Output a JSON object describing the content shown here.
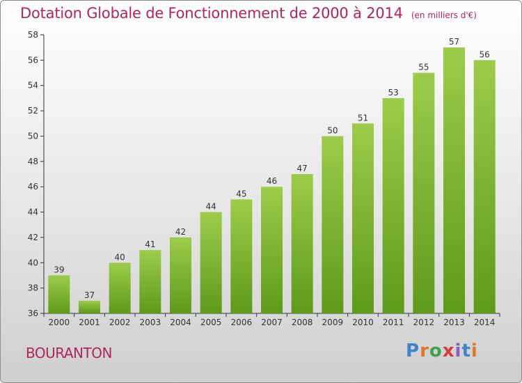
{
  "header": {
    "title": "Dotation Globale de Fonctionnement de 2000 à 2014",
    "unit": "(en milliers d'€)"
  },
  "footer": {
    "place": "BOURANTON",
    "logo_text": "Proxiti",
    "logo_colors": [
      "#3a86c8",
      "#e2771e",
      "#3fa34d",
      "#d93a3a",
      "#8a5bc4",
      "#3a86c8",
      "#e2771e"
    ]
  },
  "chart_data": {
    "type": "bar",
    "title": "Dotation Globale de Fonctionnement de 2000 à 2014",
    "subtitle": "(en milliers d'€)",
    "xlabel": "",
    "ylabel": "",
    "categories": [
      "2000",
      "2001",
      "2002",
      "2003",
      "2004",
      "2005",
      "2006",
      "2007",
      "2008",
      "2009",
      "2010",
      "2011",
      "2012",
      "2013",
      "2014"
    ],
    "values": [
      39,
      37,
      40,
      41,
      42,
      44,
      45,
      46,
      47,
      50,
      51,
      53,
      55,
      57,
      56
    ],
    "ylim": [
      36,
      58
    ],
    "yticks": [
      36,
      38,
      40,
      42,
      44,
      46,
      48,
      50,
      52,
      54,
      56,
      58
    ],
    "grid": false,
    "bar_color_top": "#9ccc4a",
    "bar_color_bottom": "#5e9a1a"
  }
}
